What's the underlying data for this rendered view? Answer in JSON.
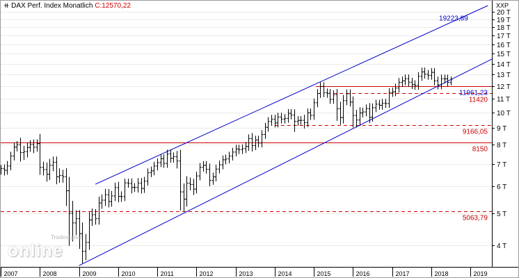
{
  "header": {
    "instrument": "DAX Perf. Index",
    "period": "Monatlich",
    "last_prefix": "C:",
    "last_value": "12570,22",
    "scale_label": "XXP"
  },
  "watermark": {
    "brand": "Tradesignal",
    "word": "online"
  },
  "colors": {
    "price": "#000000",
    "channel": "#0000c8",
    "level": "#cc0000",
    "grid": "#ebebeb",
    "blue_label": "#0000c8",
    "red_label": "#cc0000"
  },
  "chart_data": {
    "type": "ohlc",
    "title": "DAX Perf. Index Monatlich",
    "log_scale": true,
    "xlim": [
      2007.0,
      2019.55
    ],
    "ylim": [
      3450,
      21000
    ],
    "y_ticks": [
      {
        "value": 4000,
        "label": "4 T"
      },
      {
        "value": 5000,
        "label": "5 T"
      },
      {
        "value": 6000,
        "label": "6 T"
      },
      {
        "value": 7000,
        "label": "7 T"
      },
      {
        "value": 8000,
        "label": "8 T"
      },
      {
        "value": 9000,
        "label": "9 T"
      },
      {
        "value": 10000,
        "label": "10 T"
      },
      {
        "value": 11000,
        "label": "11 T"
      },
      {
        "value": 12000,
        "label": "12 T"
      },
      {
        "value": 13000,
        "label": "13 T"
      },
      {
        "value": 14000,
        "label": "14 T"
      },
      {
        "value": 15000,
        "label": "15 T"
      },
      {
        "value": 16000,
        "label": "16 T"
      },
      {
        "value": 17000,
        "label": "17 T"
      },
      {
        "value": 18000,
        "label": "18 T"
      },
      {
        "value": 19000,
        "label": "19 T"
      },
      {
        "value": 20000,
        "label": "20 T"
      }
    ],
    "x_ticks": [
      {
        "value": 2007,
        "label": "2007"
      },
      {
        "value": 2008,
        "label": "2008"
      },
      {
        "value": 2009,
        "label": "2009"
      },
      {
        "value": 2010,
        "label": "2010"
      },
      {
        "value": 2011,
        "label": "2011"
      },
      {
        "value": 2012,
        "label": "2012"
      },
      {
        "value": 2013,
        "label": "2013"
      },
      {
        "value": 2014,
        "label": "2014"
      },
      {
        "value": 2015,
        "label": "2015"
      },
      {
        "value": 2016,
        "label": "2016"
      },
      {
        "value": 2017,
        "label": "2017"
      },
      {
        "value": 2018,
        "label": "2018"
      },
      {
        "value": 2019,
        "label": "2019"
      }
    ],
    "price_series": {
      "start": 2007.0,
      "step": 0.083333,
      "close": [
        6790,
        6715,
        6917,
        7408,
        7884,
        8007,
        7585,
        7638,
        7862,
        8019,
        7871,
        8067,
        6851,
        6748,
        6535,
        6949,
        7097,
        6418,
        6480,
        6422,
        5831,
        4988,
        4669,
        4810,
        4338,
        3843,
        4085,
        4769,
        4941,
        4809,
        5360,
        5465,
        5675,
        5415,
        5625,
        5957,
        5608,
        5598,
        6154,
        6136,
        5964,
        5966,
        6148,
        5925,
        6229,
        6601,
        6688,
        6914,
        7077,
        7273,
        7041,
        7514,
        7294,
        7376,
        7159,
        5785,
        5502,
        6141,
        6089,
        5898,
        6458,
        6856,
        6947,
        6761,
        6264,
        6416,
        6772,
        6970,
        7216,
        7260,
        7406,
        7612,
        7776,
        7741,
        7795,
        7914,
        8349,
        7959,
        8276,
        8104,
        8594,
        9033,
        9405,
        9552,
        9306,
        9692,
        9556,
        9603,
        9943,
        9833,
        9407,
        9470,
        9474,
        9326,
        9980,
        9806,
        10694,
        11402,
        11966,
        11454,
        11413,
        10945,
        11309,
        10259,
        9660,
        10850,
        11382,
        10743,
        9798,
        9495,
        9966,
        10039,
        10263,
        9680,
        10337,
        10593,
        10511,
        10665,
        10640,
        11481,
        11535,
        11834,
        12312,
        12438,
        12615,
        12325,
        12118,
        12056,
        12829,
        13229,
        13023,
        12918,
        13189,
        12436,
        12097,
        12612,
        12604,
        12306,
        12570
      ],
      "high_pct": [
        0.025,
        0.03,
        0.035,
        0.03,
        0.03,
        0.025,
        0.05,
        0.04,
        0.035,
        0.03,
        0.035,
        0.03,
        0.07,
        0.04,
        0.05,
        0.045,
        0.04,
        0.04,
        0.05,
        0.04,
        0.06,
        0.1,
        0.09,
        0.06,
        0.06,
        0.08,
        0.06,
        0.055,
        0.045,
        0.04,
        0.045,
        0.04,
        0.04,
        0.04,
        0.035,
        0.035,
        0.04,
        0.035,
        0.03,
        0.03,
        0.035,
        0.03,
        0.035,
        0.035,
        0.03,
        0.03,
        0.03,
        0.03,
        0.03,
        0.03,
        0.03,
        0.03,
        0.03,
        0.03,
        0.04,
        0.08,
        0.06,
        0.05,
        0.04,
        0.04,
        0.03,
        0.03,
        0.03,
        0.03,
        0.04,
        0.03,
        0.03,
        0.03,
        0.03,
        0.03,
        0.03,
        0.03,
        0.03,
        0.03,
        0.03,
        0.03,
        0.03,
        0.04,
        0.03,
        0.03,
        0.03,
        0.03,
        0.03,
        0.03,
        0.03,
        0.03,
        0.03,
        0.03,
        0.03,
        0.03,
        0.04,
        0.03,
        0.03,
        0.04,
        0.03,
        0.03,
        0.03,
        0.03,
        0.03,
        0.03,
        0.03,
        0.03,
        0.03,
        0.04,
        0.05,
        0.04,
        0.03,
        0.03,
        0.04,
        0.04,
        0.04,
        0.03,
        0.03,
        0.04,
        0.03,
        0.03,
        0.03,
        0.03,
        0.03,
        0.03,
        0.03,
        0.03,
        0.03,
        0.03,
        0.03,
        0.03,
        0.03,
        0.03,
        0.03,
        0.03,
        0.03,
        0.03,
        0.03,
        0.03,
        0.03,
        0.03,
        0.03,
        0.03,
        0.02
      ],
      "low_pct": [
        0.03,
        0.035,
        0.03,
        0.03,
        0.03,
        0.03,
        0.06,
        0.05,
        0.04,
        0.03,
        0.04,
        0.03,
        0.05,
        0.04,
        0.05,
        0.04,
        0.04,
        0.05,
        0.04,
        0.04,
        0.1,
        0.2,
        0.12,
        0.08,
        0.1,
        0.08,
        0.06,
        0.05,
        0.04,
        0.04,
        0.04,
        0.04,
        0.04,
        0.04,
        0.035,
        0.035,
        0.04,
        0.035,
        0.03,
        0.03,
        0.04,
        0.03,
        0.035,
        0.035,
        0.03,
        0.03,
        0.03,
        0.03,
        0.03,
        0.03,
        0.03,
        0.03,
        0.03,
        0.03,
        0.05,
        0.12,
        0.08,
        0.05,
        0.04,
        0.04,
        0.03,
        0.03,
        0.03,
        0.03,
        0.04,
        0.03,
        0.03,
        0.03,
        0.03,
        0.03,
        0.03,
        0.03,
        0.03,
        0.03,
        0.03,
        0.03,
        0.03,
        0.04,
        0.03,
        0.03,
        0.03,
        0.03,
        0.03,
        0.03,
        0.03,
        0.03,
        0.03,
        0.03,
        0.03,
        0.03,
        0.07,
        0.03,
        0.03,
        0.04,
        0.03,
        0.03,
        0.03,
        0.03,
        0.03,
        0.03,
        0.03,
        0.03,
        0.03,
        0.08,
        0.05,
        0.04,
        0.03,
        0.03,
        0.08,
        0.05,
        0.04,
        0.03,
        0.03,
        0.04,
        0.03,
        0.03,
        0.03,
        0.03,
        0.03,
        0.03,
        0.03,
        0.03,
        0.03,
        0.03,
        0.03,
        0.03,
        0.03,
        0.03,
        0.03,
        0.03,
        0.03,
        0.03,
        0.03,
        0.03,
        0.03,
        0.03,
        0.03,
        0.03,
        0.02
      ]
    },
    "channel_lines": [
      {
        "name": "upper",
        "from": [
          2009.42,
          6100
        ],
        "to": [
          2019.45,
          20900
        ]
      },
      {
        "name": "lower",
        "from": [
          2009.0,
          3480
        ],
        "to": [
          2019.55,
          14450
        ]
      }
    ],
    "horizontal_levels": [
      {
        "value": 11961.23,
        "label": "11961,23",
        "style": "solid",
        "color": "#cc0000",
        "label_color": "#0000c8",
        "x_start": 2015.05,
        "x_end": 2019.55
      },
      {
        "value": 11420,
        "label": "11420",
        "style": "dashed",
        "color": "#cc0000",
        "label_color": "#cc0000",
        "x_start": 2015.5,
        "x_end": 2019.55
      },
      {
        "value": 9166.05,
        "label": "9166,05",
        "style": "dashed",
        "color": "#cc0000",
        "label_color": "#cc0000",
        "x_start": 2014.0,
        "x_end": 2019.55
      },
      {
        "value": 8150,
        "label": "8150",
        "style": "solid",
        "color": "#cc0000",
        "label_color": "#cc0000",
        "x_start": 2007.0,
        "x_end": 2019.55
      },
      {
        "value": 5063.79,
        "label": "5063,79",
        "style": "dashed",
        "color": "#cc0000",
        "label_color": "#cc0000",
        "x_start": 2007.0,
        "x_end": 2019.55
      }
    ],
    "annotations": [
      {
        "text": "19223,89",
        "x": 2018.2,
        "y": 19223.89,
        "color": "#0000c8"
      }
    ]
  }
}
